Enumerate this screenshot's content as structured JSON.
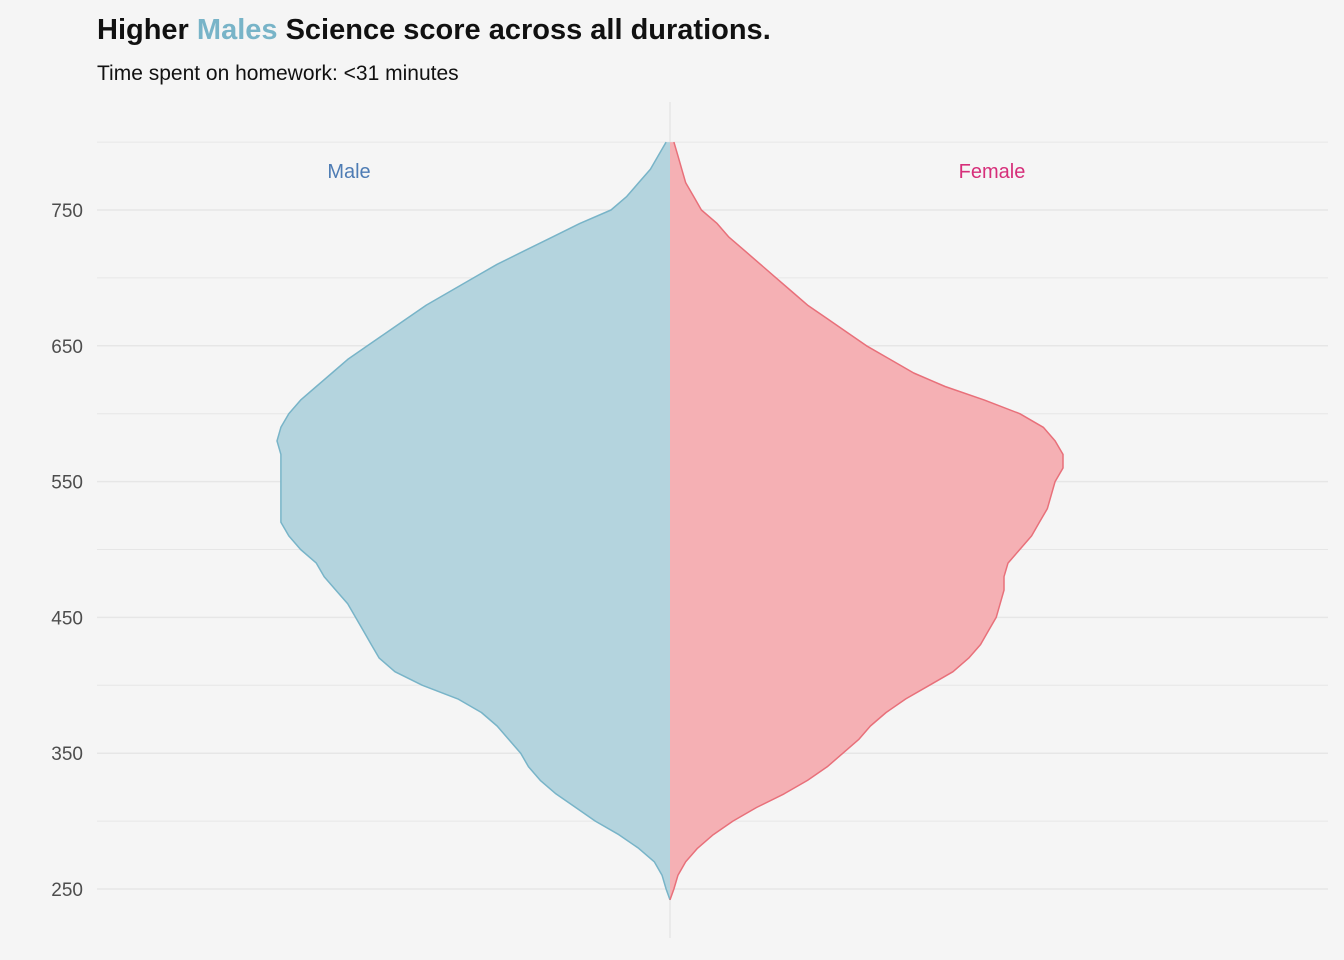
{
  "title": {
    "prefix": "Higher",
    "highlight": "Males",
    "suffix": "Science score across all durations."
  },
  "subtitle": "Time spent on homework: <31 minutes",
  "colors": {
    "background": "#f5f5f5",
    "male_fill": "#b4d4de",
    "male_line": "#78b4c8",
    "female_fill": "#f5b0b4",
    "female_line": "#e8707a",
    "male_label": "#4e7cb4",
    "female_label": "#d62f7a",
    "grid": "#e6e6e6"
  },
  "chart_data": {
    "type": "area",
    "orientation": "split-violin",
    "ylim": [
      225,
      815
    ],
    "y_ticks": [
      250,
      350,
      450,
      550,
      650,
      750
    ],
    "y_minor": [
      300,
      400,
      500,
      600,
      700,
      800
    ],
    "grid": true,
    "series": [
      {
        "name": "Male",
        "side": "left",
        "y": [
          242,
          250,
          260,
          270,
          280,
          290,
          300,
          310,
          320,
          330,
          340,
          350,
          360,
          370,
          380,
          390,
          400,
          410,
          420,
          430,
          440,
          450,
          460,
          470,
          480,
          490,
          500,
          510,
          520,
          530,
          540,
          550,
          560,
          570,
          580,
          590,
          600,
          610,
          620,
          630,
          640,
          650,
          660,
          670,
          680,
          690,
          700,
          710,
          720,
          730,
          740,
          750,
          760,
          770,
          780,
          790,
          800
        ],
        "density": [
          0.0,
          0.01,
          0.02,
          0.04,
          0.08,
          0.13,
          0.19,
          0.24,
          0.29,
          0.33,
          0.36,
          0.38,
          0.41,
          0.44,
          0.48,
          0.54,
          0.63,
          0.7,
          0.74,
          0.76,
          0.78,
          0.8,
          0.82,
          0.85,
          0.88,
          0.9,
          0.94,
          0.97,
          0.99,
          0.99,
          0.99,
          0.99,
          0.99,
          0.99,
          1.0,
          0.99,
          0.97,
          0.94,
          0.9,
          0.86,
          0.82,
          0.77,
          0.72,
          0.67,
          0.62,
          0.56,
          0.5,
          0.44,
          0.37,
          0.3,
          0.23,
          0.15,
          0.11,
          0.08,
          0.05,
          0.03,
          0.01
        ]
      },
      {
        "name": "Female",
        "side": "right",
        "y": [
          242,
          250,
          260,
          270,
          280,
          290,
          300,
          310,
          320,
          330,
          340,
          350,
          360,
          370,
          380,
          390,
          400,
          410,
          420,
          430,
          440,
          450,
          460,
          470,
          480,
          490,
          500,
          510,
          520,
          530,
          540,
          550,
          560,
          570,
          580,
          590,
          600,
          610,
          620,
          630,
          640,
          650,
          660,
          670,
          680,
          690,
          700,
          710,
          720,
          730,
          740,
          750,
          760,
          770,
          780,
          790,
          800
        ],
        "density": [
          0.0,
          0.01,
          0.02,
          0.04,
          0.07,
          0.11,
          0.16,
          0.22,
          0.29,
          0.35,
          0.4,
          0.44,
          0.48,
          0.51,
          0.55,
          0.6,
          0.66,
          0.72,
          0.76,
          0.79,
          0.81,
          0.83,
          0.84,
          0.85,
          0.85,
          0.86,
          0.89,
          0.92,
          0.94,
          0.96,
          0.97,
          0.98,
          1.0,
          1.0,
          0.98,
          0.95,
          0.89,
          0.8,
          0.7,
          0.62,
          0.56,
          0.5,
          0.45,
          0.4,
          0.35,
          0.31,
          0.27,
          0.23,
          0.19,
          0.15,
          0.12,
          0.08,
          0.06,
          0.04,
          0.03,
          0.02,
          0.01
        ]
      }
    ]
  }
}
